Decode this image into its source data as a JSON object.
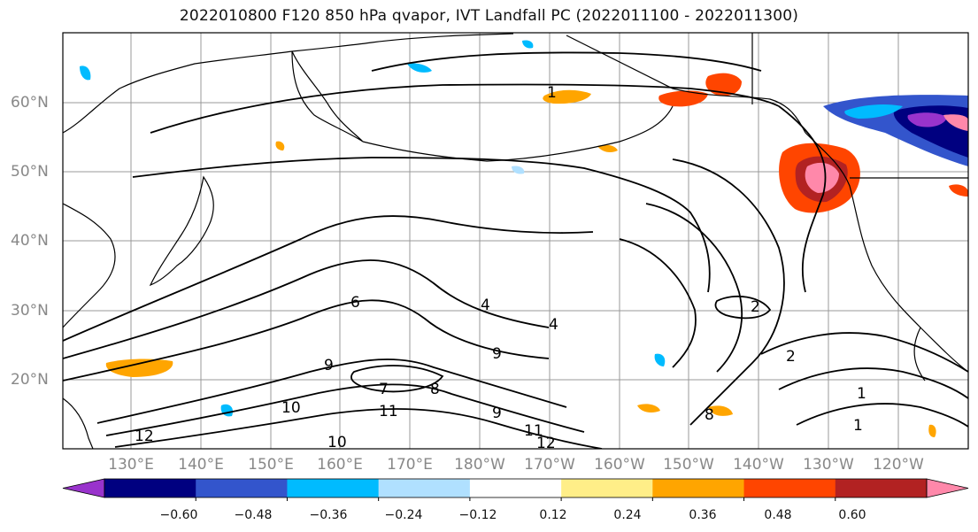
{
  "title": "2022010800 F120 850 hPa qvapor, IVT Landfall PC (2022011100 - 2022011300)",
  "map": {
    "lat_labels": [
      "60°N",
      "50°N",
      "40°N",
      "30°N",
      "20°N"
    ],
    "lon_labels": [
      "130°E",
      "140°E",
      "150°E",
      "160°E",
      "170°E",
      "180°W",
      "170°W",
      "160°W",
      "150°W",
      "140°W",
      "130°W",
      "120°W"
    ],
    "contour_labels": [
      "1",
      "2",
      "4",
      "6",
      "7",
      "8",
      "9",
      "10",
      "11",
      "12",
      "10",
      "9",
      "11",
      "12",
      "8",
      "9",
      "2",
      "4",
      "1",
      "1"
    ]
  },
  "colorbar": {
    "colors": [
      "#9933cc",
      "#000080",
      "#3355cc",
      "#00bbff",
      "#b0e0ff",
      "#ffffff",
      "#ffee88",
      "#ffa500",
      "#ff4500",
      "#b22222",
      "#ff88aa"
    ],
    "tick_labels": [
      "−0.60",
      "−0.48",
      "−0.36",
      "−0.24",
      "−0.12",
      "0.12",
      "0.24",
      "0.36",
      "0.48",
      "0.60"
    ]
  }
}
